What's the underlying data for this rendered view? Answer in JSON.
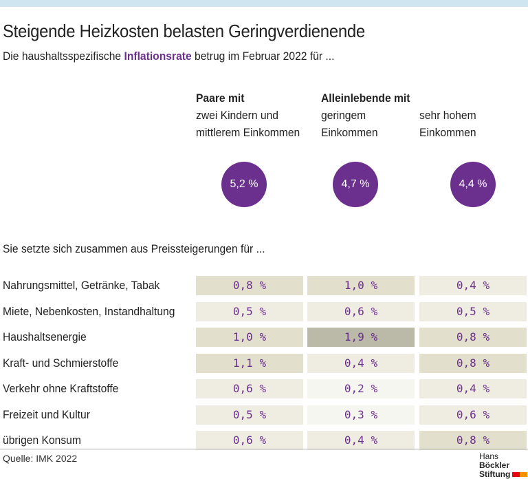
{
  "title": "Steigende Heizkosten belasten Geringverdienende",
  "subtitle": {
    "before": "Die haushaltsspezifische ",
    "highlight": "Inflationsrate",
    "after": " betrug im Februar 2022 für ..."
  },
  "columns": [
    {
      "group": "Paare mit",
      "line1": "zwei Kindern und",
      "line2": "mittlerem Einkommen"
    },
    {
      "group": "Alleinlebende mit",
      "line1": "geringem",
      "line2": "Einkommen"
    },
    {
      "group": "",
      "line1": "sehr hohem",
      "line2": "Einkommen"
    }
  ],
  "intro": "Sie setzte sich zusammen aus Preissteigerungen für ...",
  "source": "Quelle: IMK 2022",
  "logo": {
    "line1a": "Hans ",
    "line1b": "Böckler",
    "line2": "Stiftung"
  },
  "colors": {
    "accent": "#6b2f8e",
    "cell_high": "#bbb9a8",
    "cell_mid": "#e2dfcc",
    "cell_low": "#efede2",
    "cell_min": "#f6f6f0"
  },
  "chart_data": {
    "type": "table",
    "totals": [
      "5,2 %",
      "4,7 %",
      "4,4 %"
    ],
    "total_values": [
      5.2,
      4.7,
      4.4
    ],
    "categories": [
      "Nahrungsmittel, Getränke, Tabak",
      "Miete, Nebenkosten, Instandhaltung",
      "Haushaltsenergie",
      "Kraft- und Schmierstoffe",
      "Verkehr ohne Kraftstoffe",
      "Freizeit und Kultur",
      "übrigen Konsum"
    ],
    "series": [
      {
        "name": "Paare mit zwei Kindern und mittlerem Einkommen",
        "values": [
          0.8,
          0.5,
          1.0,
          1.1,
          0.6,
          0.5,
          0.6
        ]
      },
      {
        "name": "Alleinlebende mit geringem Einkommen",
        "values": [
          1.0,
          0.6,
          1.9,
          0.4,
          0.2,
          0.3,
          0.4
        ]
      },
      {
        "name": "Alleinlebende mit sehr hohem Einkommen",
        "values": [
          0.4,
          0.5,
          0.8,
          0.8,
          0.4,
          0.6,
          0.8
        ]
      }
    ],
    "unit": "%"
  }
}
